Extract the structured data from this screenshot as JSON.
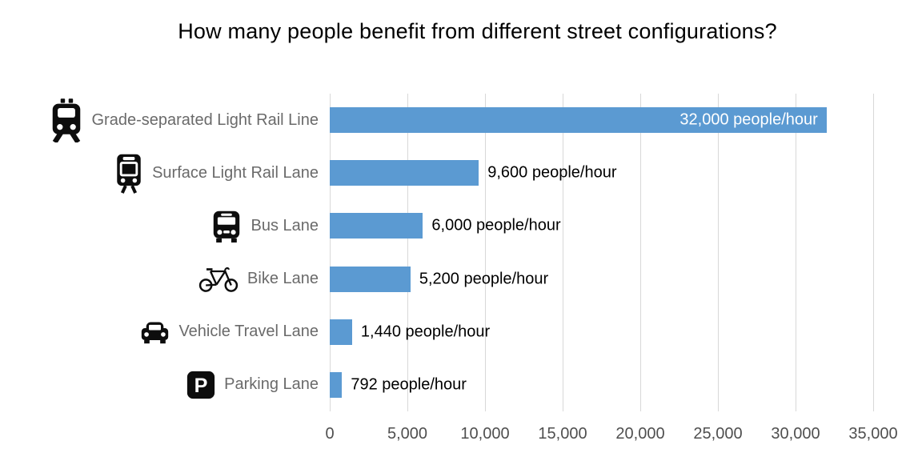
{
  "title": "How many people benefit from different street configurations?",
  "chart_data": {
    "type": "bar",
    "orientation": "horizontal",
    "title": "How many people benefit from different street configurations?",
    "categories": [
      "Grade-separated Light Rail Line",
      "Surface Light Rail Lane",
      "Bus Lane",
      "Bike Lane",
      "Vehicle Travel Lane",
      "Parking Lane"
    ],
    "icons": [
      "train-icon",
      "tram-icon",
      "bus-icon",
      "bike-icon",
      "car-icon",
      "parking-icon"
    ],
    "values": [
      32000,
      9600,
      6000,
      5200,
      1440,
      792
    ],
    "value_labels": [
      "32,000 people/hour",
      "9,600 people/hour",
      "6,000 people/hour",
      "5,200 people/hour",
      "1,440 people/hour",
      "792 people/hour"
    ],
    "units": "people/hour",
    "xlabel": "",
    "ylabel": "",
    "xlim": [
      0,
      35000
    ],
    "xticks": [
      0,
      5000,
      10000,
      15000,
      20000,
      25000,
      30000,
      35000
    ],
    "xtick_labels": [
      "0",
      "5,000",
      "10,000",
      "15,000",
      "20,000",
      "25,000",
      "30,000",
      "35,000"
    ],
    "grid": true,
    "legend": false,
    "bar_color": "#5B9AD2",
    "grid_color": "#d8d8d8",
    "category_label_color": "#6a6a6a",
    "tick_label_color": "#4f4f4f",
    "value_label_inside_color": "#ffffff",
    "value_label_outside_color": "#000000",
    "icon_color": "#0d0d0d"
  }
}
